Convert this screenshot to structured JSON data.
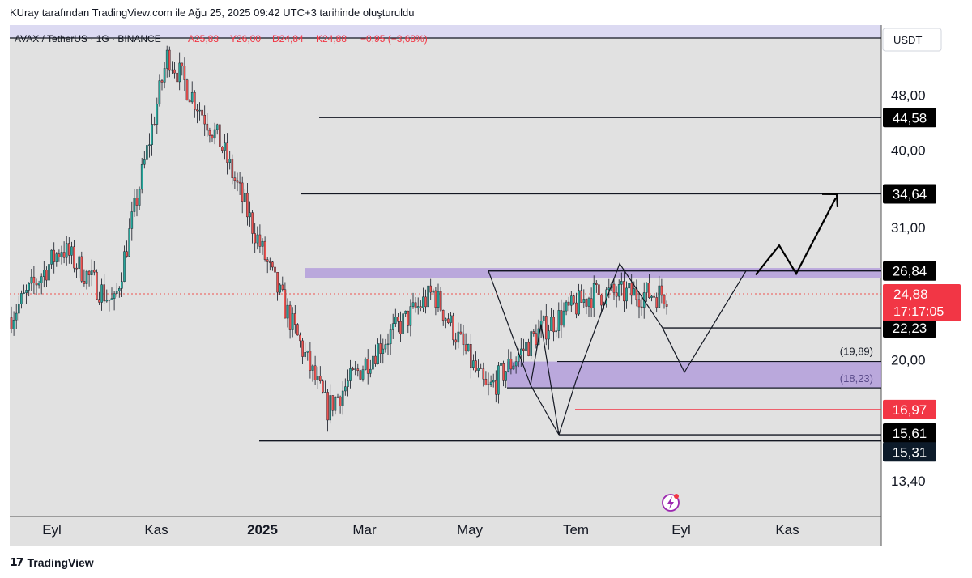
{
  "caption": "KUray tarafından TradingView.com ile Ağu 25, 2025 09:42 UTC+3 tarihinde oluşturuldu",
  "brand": "TradingView",
  "header": {
    "symbol": "AVAX / TetherUS · 1G · BINANCE",
    "open": "A25,83",
    "high": "Y26,00",
    "low": "D24,84",
    "close": "K24,88",
    "change": "−0,95 (−3,68%)"
  },
  "currency": "USDT",
  "colors": {
    "background": "#e1e1e1",
    "up": "#26a69a",
    "down": "#ef5350",
    "zone": "#b39ddb",
    "label_dark": "#000000",
    "label_red": "#f23645",
    "price_line": "#ef5350"
  },
  "chart_data": {
    "type": "candlestick",
    "scale": "log",
    "ylim": [
      12.5,
      58
    ],
    "x_labels": [
      "Eyl",
      "Kas",
      "2025",
      "Mar",
      "May",
      "Tem",
      "Eyl",
      "Kas"
    ],
    "y_ticks": [
      "48,00",
      "40,00",
      "31,00",
      "20,00",
      "13,40"
    ],
    "price_path": [
      {
        "month": "Eyl 2024",
        "price": 23
      },
      {
        "month": "Eki 2024",
        "price": 29
      },
      {
        "month": "Kas 2024",
        "price": 24
      },
      {
        "month": "Ara 2024",
        "price": 55
      },
      {
        "month": "Oca 2025",
        "price": 41
      },
      {
        "month": "Şub 2025",
        "price": 26
      },
      {
        "month": "Mar 2025",
        "price": 17
      },
      {
        "month": "Nis 2025",
        "price": 21
      },
      {
        "month": "May 2025",
        "price": 25
      },
      {
        "month": "Haz 2025",
        "price": 18
      },
      {
        "month": "Tem 2025",
        "price": 22
      },
      {
        "month": "Ağu 2025",
        "price": 24.88
      }
    ],
    "levels": [
      {
        "label": "44,58",
        "value": 44.58,
        "style": "dark"
      },
      {
        "label": "34,64",
        "value": 34.64,
        "style": "dark"
      },
      {
        "label": "26,84",
        "value": 26.84,
        "style": "dark"
      },
      {
        "label": "22,23",
        "value": 22.23,
        "style": "dark"
      },
      {
        "label": "16,97",
        "value": 16.97,
        "style": "red"
      },
      {
        "label": "15,61",
        "value": 15.61,
        "style": "dark"
      },
      {
        "label": "15,31",
        "value": 15.31,
        "style": "navy"
      }
    ],
    "current_price": {
      "label": "24,88",
      "countdown": "17:17:05",
      "value": 24.88
    },
    "zones": [
      {
        "from": 26.2,
        "to": 27.1
      },
      {
        "from": 18.23,
        "to": 19.89,
        "upper_label": "(19,89)",
        "lower_label": "(18,23)"
      }
    ]
  }
}
